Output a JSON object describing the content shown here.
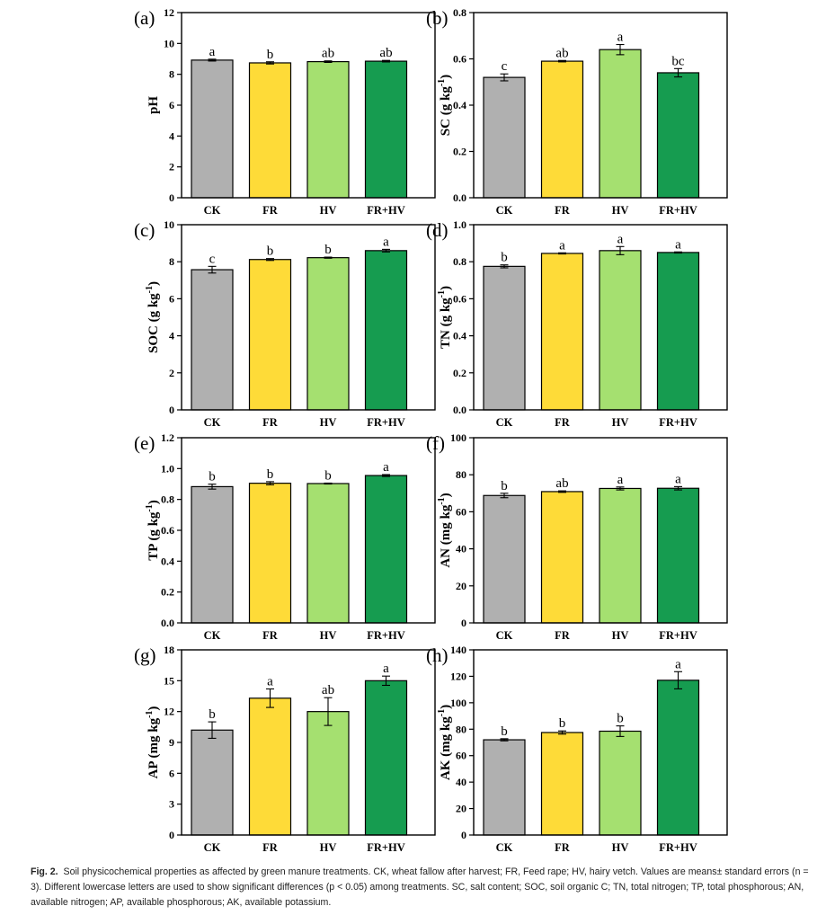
{
  "colors": {
    "CK": "#b0b0b0",
    "FR": "#fedb38",
    "HV": "#a5e070",
    "FR+HV": "#169c50"
  },
  "charts": [
    {
      "panel": "(a)",
      "type": "bar",
      "ylabel": "pH",
      "ylim": [
        0,
        12
      ],
      "yticks": [
        "0",
        "2",
        "4",
        "6",
        "8",
        "10",
        "12"
      ],
      "categories": [
        "CK",
        "FR",
        "HV",
        "FR+HV"
      ],
      "values": [
        8.92,
        8.74,
        8.82,
        8.85
      ],
      "errors": [
        0.06,
        0.07,
        0.05,
        0.05
      ],
      "letters": [
        "a",
        "b",
        "ab",
        "ab"
      ]
    },
    {
      "panel": "(b)",
      "type": "bar",
      "ylabel": "SC (g kg-1)",
      "ylim": [
        0,
        0.8
      ],
      "yticks": [
        "0.0",
        "0.2",
        "0.4",
        "0.6",
        "0.8"
      ],
      "categories": [
        "CK",
        "FR",
        "HV",
        "FR+HV"
      ],
      "values": [
        0.52,
        0.59,
        0.64,
        0.54
      ],
      "errors": [
        0.015,
        0.003,
        0.022,
        0.018
      ],
      "letters": [
        "c",
        "ab",
        "a",
        "bc"
      ]
    },
    {
      "panel": "(c)",
      "type": "bar",
      "ylabel": "SOC (g kg-1)",
      "ylim": [
        0,
        10
      ],
      "yticks": [
        "0",
        "2",
        "4",
        "6",
        "8",
        "10"
      ],
      "categories": [
        "CK",
        "FR",
        "HV",
        "FR+HV"
      ],
      "values": [
        7.57,
        8.12,
        8.22,
        8.6
      ],
      "errors": [
        0.18,
        0.05,
        0.03,
        0.07
      ],
      "letters": [
        "c",
        "b",
        "b",
        "a"
      ]
    },
    {
      "panel": "(d)",
      "type": "bar",
      "ylabel": "TN (g kg-1)",
      "ylim": [
        0,
        1.0
      ],
      "yticks": [
        "0.0",
        "0.2",
        "0.4",
        "0.6",
        "0.8",
        "1.0"
      ],
      "categories": [
        "CK",
        "FR",
        "HV",
        "FR+HV"
      ],
      "values": [
        0.775,
        0.845,
        0.86,
        0.85
      ],
      "errors": [
        0.008,
        0.003,
        0.022,
        0.003
      ],
      "letters": [
        "b",
        "a",
        "a",
        "a"
      ]
    },
    {
      "panel": "(e)",
      "type": "bar",
      "ylabel": "TP (g kg-1)",
      "ylim": [
        0,
        1.2
      ],
      "yticks": [
        "0.0",
        "0.2",
        "0.4",
        "0.6",
        "0.8",
        "1.0",
        "1.2"
      ],
      "categories": [
        "CK",
        "FR",
        "HV",
        "FR+HV"
      ],
      "values": [
        0.883,
        0.905,
        0.903,
        0.955
      ],
      "errors": [
        0.016,
        0.01,
        0.003,
        0.006
      ],
      "letters": [
        "b",
        "b",
        "b",
        "a"
      ]
    },
    {
      "panel": "(f)",
      "type": "bar",
      "ylabel": "AN (mg kg-1)",
      "ylim": [
        0,
        100
      ],
      "yticks": [
        "0",
        "20",
        "40",
        "60",
        "80",
        "100"
      ],
      "categories": [
        "CK",
        "FR",
        "HV",
        "FR+HV"
      ],
      "values": [
        68.8,
        70.9,
        72.6,
        72.7
      ],
      "errors": [
        1.2,
        0.4,
        0.8,
        0.9
      ],
      "letters": [
        "b",
        "ab",
        "a",
        "a"
      ]
    },
    {
      "panel": "(g)",
      "type": "bar",
      "ylabel": "AP (mg kg-1)",
      "ylim": [
        0,
        18
      ],
      "yticks": [
        "0",
        "3",
        "6",
        "9",
        "12",
        "15",
        "18"
      ],
      "categories": [
        "CK",
        "FR",
        "HV",
        "FR+HV"
      ],
      "values": [
        10.2,
        13.3,
        12.0,
        15.0
      ],
      "errors": [
        0.8,
        0.9,
        1.35,
        0.45
      ],
      "letters": [
        "b",
        "a",
        "ab",
        "a"
      ]
    },
    {
      "panel": "(h)",
      "type": "bar",
      "ylabel": "AK (mg kg-1)",
      "ylim": [
        0,
        140
      ],
      "yticks": [
        "0",
        "20",
        "40",
        "60",
        "80",
        "100",
        "120",
        "140"
      ],
      "categories": [
        "CK",
        "FR",
        "HV",
        "FR+HV"
      ],
      "values": [
        72.0,
        77.5,
        78.5,
        117.0
      ],
      "errors": [
        0.8,
        1.2,
        4.0,
        6.5
      ],
      "letters": [
        "b",
        "b",
        "b",
        "a"
      ]
    }
  ],
  "caption": {
    "label": "Fig. 2.",
    "text": "Soil physicochemical properties as affected by green manure treatments. CK, wheat fallow after harvest; FR, Feed rape; HV, hairy vetch. Values are means± standard errors (n = 3). Different lowercase letters are used to show significant differences (p < 0.05) among treatments. SC, salt content; SOC, soil organic C; TN, total nitrogen; TP, total phosphorous; AN, available nitrogen; AP, available phosphorous; AK, available potassium."
  }
}
